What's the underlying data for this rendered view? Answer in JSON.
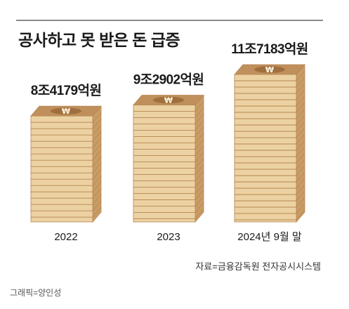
{
  "title": "공사하고 못 받은 돈 급증",
  "source": "자료=금융감독원 전자공시시스템",
  "credit": "그래픽=양인성",
  "chart_data": {
    "type": "bar",
    "title": "공사하고 못 받은 돈 급증",
    "categories": [
      "2022",
      "2023",
      "2024년 9월 말"
    ],
    "values": [
      84179,
      92902,
      117183
    ],
    "value_labels": [
      "8조4179억원",
      "9조2902억원",
      "11조7183억원"
    ],
    "unit": "억원",
    "ylim": [
      0,
      117183
    ],
    "grid": false,
    "legend": "none"
  },
  "colors": {
    "bill_face": "#ecd2a2",
    "bill_side": "#c99c66",
    "bill_edge": "#b68552",
    "bill_top": "#c0905c",
    "band": "#a06f3e",
    "currency_glyph": "#fff3dc",
    "rule": "#8a8a8a"
  },
  "icons": {
    "top_bill": "won-sign-icon"
  }
}
